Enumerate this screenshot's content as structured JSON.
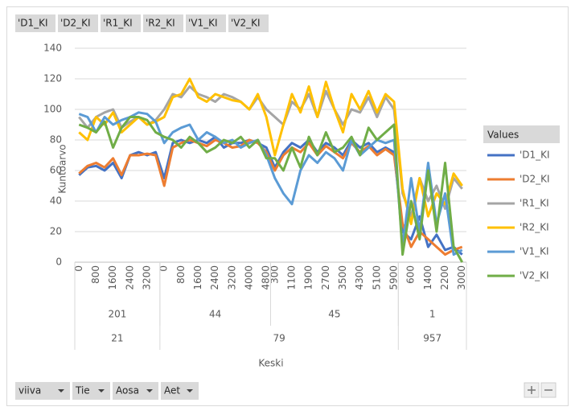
{
  "chart_data": {
    "type": "line",
    "ylabel": "Kuntoarvo",
    "xlabel": "Keski",
    "legend_title": "Values",
    "row_fields": [
      "viiva",
      "Tie",
      "Aosa",
      "Aet"
    ],
    "ylim": [
      0,
      140
    ],
    "yticks": [
      0,
      20,
      40,
      60,
      80,
      100,
      120,
      140
    ],
    "grid": true,
    "categories": [
      "0",
      null,
      "800",
      null,
      "1600",
      null,
      "2400",
      null,
      "3200",
      null,
      "0",
      null,
      "800",
      null,
      "1600",
      null,
      "2400",
      null,
      "3200",
      null,
      "4000",
      null,
      "4800",
      "300",
      null,
      "1100",
      null,
      "1900",
      null,
      "2700",
      null,
      "3500",
      null,
      "4300",
      null,
      "5100",
      null,
      "5900",
      null,
      "600",
      null,
      "1400",
      null,
      "2200",
      null,
      "3000"
    ],
    "category_levels": [
      [
        "201",
        "201",
        "201",
        "201",
        "201",
        "201",
        "201",
        "201",
        "201",
        "201",
        "44",
        "44",
        "44",
        "44",
        "44",
        "44",
        "44",
        "44",
        "44",
        "44",
        "44",
        "44",
        "44",
        "45",
        "45",
        "45",
        "45",
        "45",
        "45",
        "45",
        "45",
        "45",
        "45",
        "45",
        "45",
        "45",
        "45",
        "45",
        "1",
        "1",
        "1",
        "1",
        "1",
        "1",
        "1",
        "1"
      ],
      [
        "21",
        "21",
        "21",
        "21",
        "21",
        "21",
        "21",
        "21",
        "21",
        "21",
        "79",
        "79",
        "79",
        "79",
        "79",
        "79",
        "79",
        "79",
        "79",
        "79",
        "79",
        "79",
        "79",
        "79",
        "79",
        "79",
        "79",
        "79",
        "79",
        "79",
        "79",
        "79",
        "79",
        "79",
        "79",
        "79",
        "79",
        "79",
        "957",
        "957",
        "957",
        "957",
        "957",
        "957",
        "957",
        "957"
      ]
    ],
    "series": [
      {
        "name": "'D1_KI",
        "color": "#4472c4",
        "values": [
          57,
          62,
          63,
          60,
          65,
          55,
          70,
          72,
          70,
          72,
          55,
          78,
          80,
          78,
          80,
          78,
          82,
          75,
          78,
          78,
          80,
          78,
          75,
          62,
          72,
          78,
          75,
          80,
          72,
          78,
          75,
          70,
          80,
          75,
          78,
          72,
          75,
          72,
          20,
          15,
          30,
          10,
          18,
          8,
          10,
          5
        ]
      },
      {
        "name": "'D2_KI",
        "color": "#ed7d31",
        "values": [
          58,
          63,
          65,
          62,
          68,
          57,
          70,
          70,
          71,
          70,
          50,
          75,
          78,
          80,
          78,
          76,
          80,
          78,
          75,
          76,
          80,
          78,
          72,
          60,
          70,
          75,
          72,
          78,
          70,
          76,
          72,
          68,
          78,
          72,
          76,
          70,
          74,
          70,
          25,
          10,
          20,
          15,
          10,
          5,
          8,
          10
        ]
      },
      {
        "name": "'R1_KI",
        "color": "#a5a5a5",
        "values": [
          95,
          88,
          95,
          98,
          100,
          88,
          92,
          95,
          90,
          93,
          100,
          110,
          108,
          115,
          110,
          108,
          105,
          110,
          108,
          105,
          100,
          108,
          100,
          95,
          90,
          105,
          100,
          110,
          95,
          112,
          100,
          90,
          100,
          98,
          108,
          95,
          108,
          100,
          45,
          30,
          55,
          40,
          50,
          35,
          55,
          48
        ]
      },
      {
        "name": "'R2_KI",
        "color": "#ffc000",
        "values": [
          85,
          80,
          95,
          90,
          98,
          85,
          90,
          95,
          90,
          92,
          95,
          108,
          110,
          120,
          108,
          105,
          110,
          108,
          106,
          105,
          100,
          110,
          95,
          70,
          90,
          110,
          98,
          115,
          95,
          118,
          100,
          85,
          110,
          100,
          112,
          98,
          110,
          105,
          48,
          25,
          55,
          30,
          45,
          38,
          58,
          50
        ]
      },
      {
        "name": "'V1_KI",
        "color": "#5b9bd5",
        "values": [
          97,
          95,
          85,
          95,
          90,
          93,
          95,
          98,
          97,
          92,
          78,
          85,
          88,
          90,
          80,
          85,
          82,
          78,
          80,
          75,
          78,
          80,
          70,
          55,
          45,
          38,
          60,
          70,
          65,
          72,
          68,
          60,
          80,
          70,
          75,
          80,
          78,
          80,
          10,
          55,
          20,
          65,
          25,
          45,
          5,
          8
        ]
      },
      {
        "name": "'V2_KI",
        "color": "#70ad47",
        "values": [
          90,
          88,
          85,
          92,
          75,
          88,
          95,
          95,
          93,
          85,
          82,
          80,
          75,
          82,
          78,
          72,
          75,
          80,
          78,
          82,
          75,
          80,
          68,
          68,
          60,
          75,
          62,
          82,
          70,
          85,
          72,
          75,
          82,
          70,
          88,
          80,
          85,
          90,
          5,
          40,
          15,
          60,
          20,
          65,
          10,
          0
        ]
      }
    ]
  }
}
